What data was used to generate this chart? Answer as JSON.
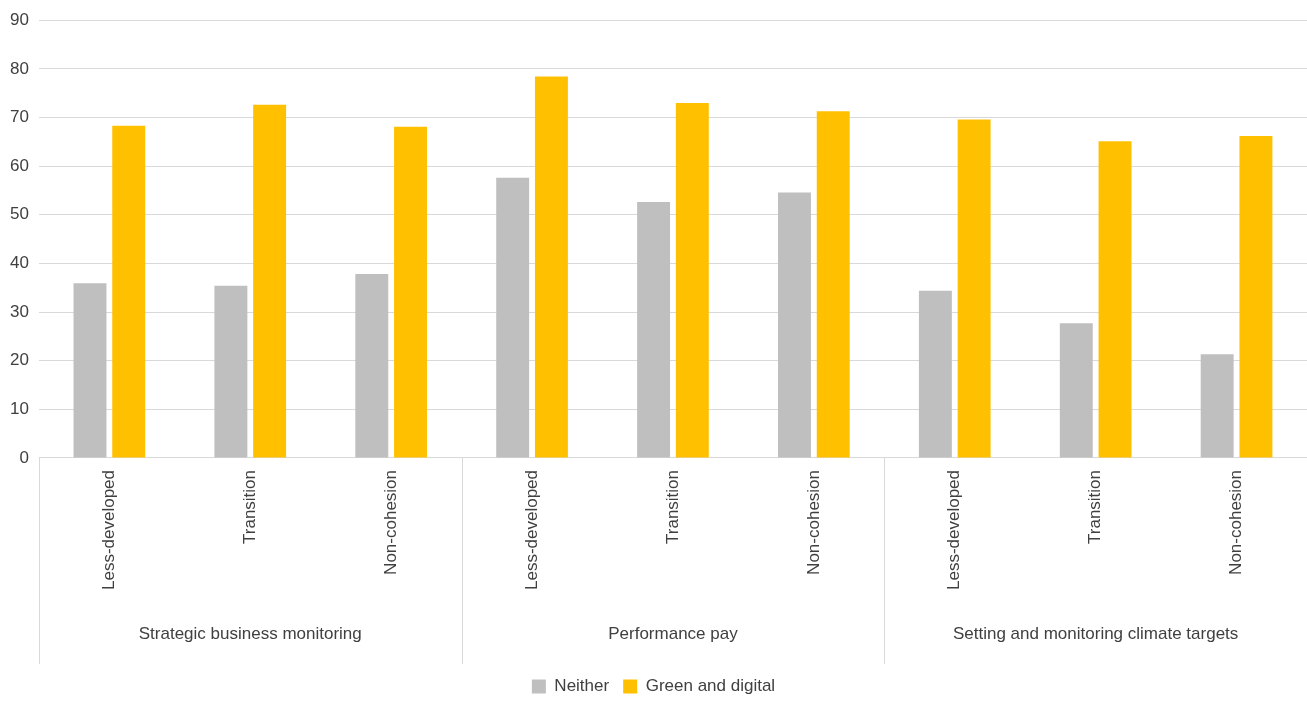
{
  "chart_data": {
    "type": "bar",
    "categories": [
      "Less-developed",
      "Transition",
      "Non-cohesion",
      "Less-developed",
      "Transition",
      "Non-cohesion",
      "Less-developed",
      "Transition",
      "Non-cohesion"
    ],
    "series": [
      {
        "name": "Neither",
        "color": "#bfbfbf",
        "values": [
          35.9,
          35.4,
          37.8,
          57.6,
          52.6,
          54.6,
          34.4,
          27.7,
          21.3
        ]
      },
      {
        "name": "Green and digital",
        "color": "#ffc000",
        "values": [
          68.3,
          72.6,
          68.1,
          78.4,
          73.0,
          71.3,
          69.6,
          65.1,
          66.2
        ]
      }
    ],
    "annotations": [
      "Strategic business monitoring",
      "Performance pay",
      "Setting and monitoring climate targets"
    ],
    "ylim": [
      0,
      90
    ],
    "yticks": [
      0,
      10,
      20,
      30,
      40,
      50,
      60,
      70,
      80,
      90
    ],
    "grid": "y",
    "legend": "bottom"
  }
}
